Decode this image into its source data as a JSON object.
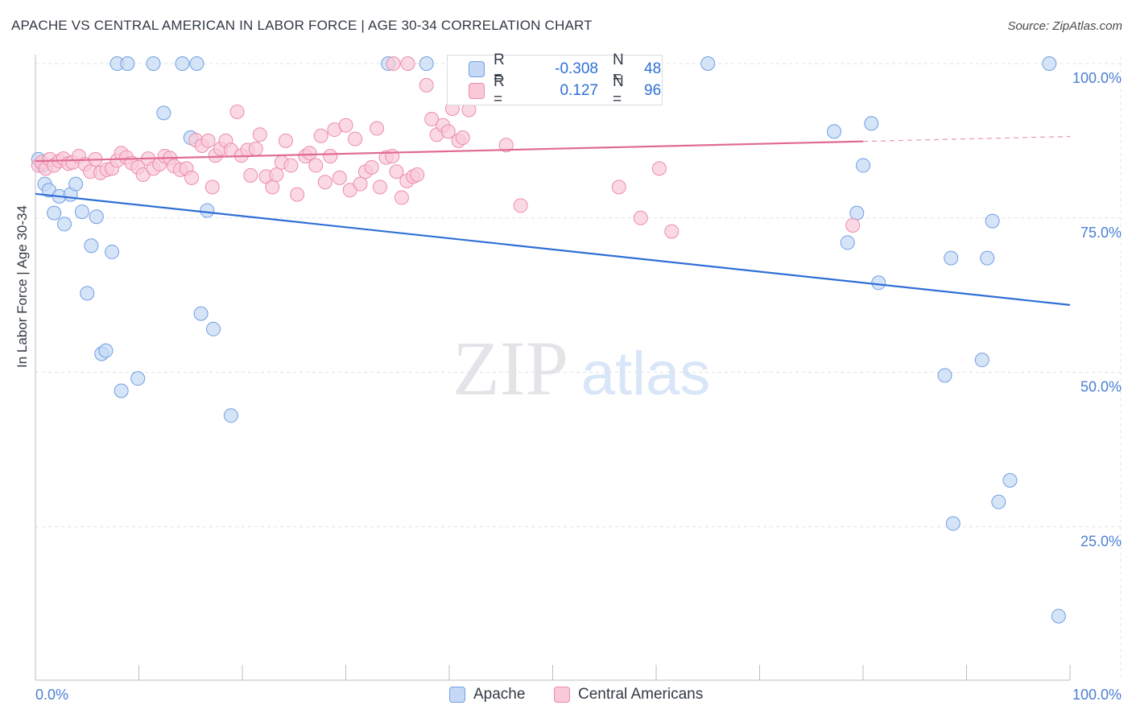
{
  "title": "APACHE VS CENTRAL AMERICAN IN LABOR FORCE | AGE 30-34 CORRELATION CHART",
  "source": "Source: ZipAtlas.com",
  "watermark": {
    "zip": "ZIP",
    "atlas": "atlas"
  },
  "legend_stats": [
    {
      "r_label": "R =",
      "r_value": "-0.308",
      "n_label": "N =",
      "n_value": "48",
      "color": "#6f9fe3"
    },
    {
      "r_label": "R =",
      "r_value": "0.127",
      "n_label": "N =",
      "n_value": "96",
      "color": "#ec8daa"
    }
  ],
  "legend": [
    "Apache",
    "Central Americans"
  ],
  "chart_data": {
    "type": "scatter",
    "title": "APACHE VS CENTRAL AMERICAN IN LABOR FORCE | AGE 30-34 CORRELATION CHART",
    "xlabel": "",
    "ylabel": "In Labor Force | Age 30-34",
    "xlim": [
      0,
      100
    ],
    "ylim": [
      0,
      105
    ],
    "x_tick_labels": [
      "0.0%",
      "100.0%"
    ],
    "y_tick_labels": [
      "25.0%",
      "50.0%",
      "75.0%",
      "100.0%"
    ],
    "y_ticks": [
      25,
      50,
      75,
      100
    ],
    "grid": true,
    "legend_position": "bottom",
    "series": [
      {
        "name": "Apache",
        "color": "#6f9fe3",
        "fill": "#c5d8f5",
        "trend": {
          "x0": 0,
          "y0": 78.9,
          "x1": 100,
          "y1": 60.9,
          "dash_from": null
        },
        "points": [
          [
            0.3,
            84.5
          ],
          [
            0.7,
            83.5
          ],
          [
            0.9,
            80.5
          ],
          [
            1.3,
            79.5
          ],
          [
            1.8,
            75.8
          ],
          [
            2.3,
            78.5
          ],
          [
            2.8,
            74.0
          ],
          [
            3.4,
            78.8
          ],
          [
            3.9,
            80.5
          ],
          [
            4.5,
            76.0
          ],
          [
            5.4,
            70.5
          ],
          [
            5.9,
            75.2
          ],
          [
            5.0,
            62.8
          ],
          [
            7.4,
            69.5
          ],
          [
            6.4,
            53.0
          ],
          [
            6.8,
            53.5
          ],
          [
            8.3,
            47.0
          ],
          [
            9.9,
            49.0
          ],
          [
            7.9,
            100
          ],
          [
            8.9,
            100
          ],
          [
            11.4,
            100
          ],
          [
            14.2,
            100
          ],
          [
            15.6,
            100
          ],
          [
            12.4,
            92.0
          ],
          [
            15.0,
            88.0
          ],
          [
            16.6,
            76.2
          ],
          [
            16.0,
            59.5
          ],
          [
            17.2,
            57.0
          ],
          [
            18.9,
            43.0
          ],
          [
            34.1,
            100
          ],
          [
            37.8,
            100
          ],
          [
            65.0,
            100
          ],
          [
            98.0,
            100
          ],
          [
            77.2,
            89.0
          ],
          [
            80.8,
            90.3
          ],
          [
            80.0,
            83.5
          ],
          [
            79.4,
            75.8
          ],
          [
            78.5,
            71.0
          ],
          [
            81.5,
            64.5
          ],
          [
            88.5,
            68.5
          ],
          [
            92.0,
            68.5
          ],
          [
            92.5,
            74.5
          ],
          [
            87.9,
            49.5
          ],
          [
            91.5,
            52.0
          ],
          [
            94.2,
            32.5
          ],
          [
            93.1,
            29.0
          ],
          [
            88.7,
            25.5
          ],
          [
            98.9,
            10.5
          ]
        ]
      },
      {
        "name": "Central Americans",
        "color": "#ec8daa",
        "fill": "#f9c9d8",
        "trend": {
          "x0": 0,
          "y0": 84.2,
          "x1": 100,
          "y1": 88.2,
          "dash_from": 80
        },
        "points": [
          [
            0.3,
            83.5
          ],
          [
            0.6,
            84.0
          ],
          [
            1.0,
            83.0
          ],
          [
            1.4,
            84.5
          ],
          [
            1.8,
            83.5
          ],
          [
            2.3,
            84.2
          ],
          [
            2.7,
            84.6
          ],
          [
            3.2,
            83.8
          ],
          [
            3.6,
            84.0
          ],
          [
            4.2,
            85.0
          ],
          [
            4.8,
            83.7
          ],
          [
            5.3,
            82.5
          ],
          [
            5.8,
            84.5
          ],
          [
            6.3,
            82.3
          ],
          [
            6.9,
            82.8
          ],
          [
            7.4,
            83.0
          ],
          [
            7.9,
            84.3
          ],
          [
            8.3,
            85.5
          ],
          [
            8.8,
            84.8
          ],
          [
            9.3,
            83.9
          ],
          [
            9.9,
            83.2
          ],
          [
            10.4,
            82.0
          ],
          [
            10.9,
            84.6
          ],
          [
            11.4,
            83.0
          ],
          [
            12.0,
            83.7
          ],
          [
            12.5,
            85.0
          ],
          [
            13.0,
            84.7
          ],
          [
            13.4,
            83.4
          ],
          [
            14.0,
            82.8
          ],
          [
            14.6,
            83.0
          ],
          [
            15.1,
            81.5
          ],
          [
            15.5,
            87.6
          ],
          [
            16.1,
            86.7
          ],
          [
            16.7,
            87.5
          ],
          [
            17.1,
            80.0
          ],
          [
            17.4,
            85.1
          ],
          [
            17.9,
            86.2
          ],
          [
            18.4,
            87.5
          ],
          [
            18.9,
            86.0
          ],
          [
            19.5,
            92.2
          ],
          [
            19.9,
            85.1
          ],
          [
            20.5,
            86.0
          ],
          [
            20.8,
            81.9
          ],
          [
            21.3,
            86.2
          ],
          [
            21.7,
            88.5
          ],
          [
            22.3,
            81.7
          ],
          [
            22.9,
            80.0
          ],
          [
            23.3,
            82.0
          ],
          [
            23.8,
            84.0
          ],
          [
            24.2,
            87.5
          ],
          [
            24.7,
            83.5
          ],
          [
            25.3,
            78.8
          ],
          [
            26.1,
            85.0
          ],
          [
            26.5,
            85.5
          ],
          [
            27.1,
            83.5
          ],
          [
            27.6,
            88.3
          ],
          [
            28.0,
            80.8
          ],
          [
            28.5,
            85.0
          ],
          [
            28.9,
            89.3
          ],
          [
            29.4,
            81.5
          ],
          [
            30.0,
            90.0
          ],
          [
            30.4,
            79.5
          ],
          [
            30.9,
            87.8
          ],
          [
            31.4,
            80.5
          ],
          [
            31.9,
            82.5
          ],
          [
            32.5,
            83.2
          ],
          [
            33.0,
            89.5
          ],
          [
            33.3,
            80.0
          ],
          [
            33.9,
            84.8
          ],
          [
            34.5,
            85.0
          ],
          [
            34.9,
            82.5
          ],
          [
            35.4,
            78.3
          ],
          [
            35.9,
            81.0
          ],
          [
            36.5,
            81.7
          ],
          [
            36.9,
            82.0
          ],
          [
            37.8,
            96.5
          ],
          [
            38.3,
            91.0
          ],
          [
            38.8,
            88.5
          ],
          [
            39.4,
            90.0
          ],
          [
            39.9,
            89.0
          ],
          [
            40.3,
            92.7
          ],
          [
            40.9,
            87.5
          ],
          [
            41.3,
            88.0
          ],
          [
            41.9,
            92.5
          ],
          [
            34.6,
            100
          ],
          [
            36.0,
            100
          ],
          [
            43.8,
            100
          ],
          [
            45.6,
            96.0
          ],
          [
            47.5,
            100
          ],
          [
            45.5,
            86.8
          ],
          [
            46.9,
            77.0
          ],
          [
            56.4,
            80.0
          ],
          [
            58.5,
            75.0
          ],
          [
            60.3,
            83.0
          ],
          [
            61.5,
            72.8
          ],
          [
            79.0,
            73.8
          ]
        ]
      }
    ]
  }
}
